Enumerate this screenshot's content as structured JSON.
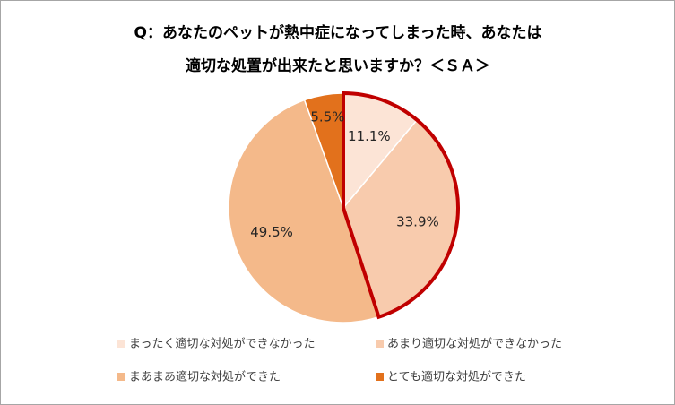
{
  "chart_data": {
    "type": "pie",
    "title": [
      "Q：あなたのペットが熱中症になってしまった時、あなたは",
      "適切な処置が出来たと思いますか？＜ＳＡ＞"
    ],
    "categories": [
      "まったく適切な対処ができなかった",
      "あまり適切な対処ができなかった",
      "まあまあ適切な対処ができた",
      "とても適切な対処ができた"
    ],
    "values": [
      11.1,
      33.9,
      49.5,
      5.5
    ],
    "value_labels": [
      "11.1%",
      "33.9%",
      "49.5%",
      "5.5%"
    ],
    "colors": [
      "#fce4d6",
      "#f8cbad",
      "#f4b98a",
      "#e2711c"
    ],
    "highlight": {
      "slices": [
        0,
        1
      ],
      "color": "#c00000"
    }
  }
}
